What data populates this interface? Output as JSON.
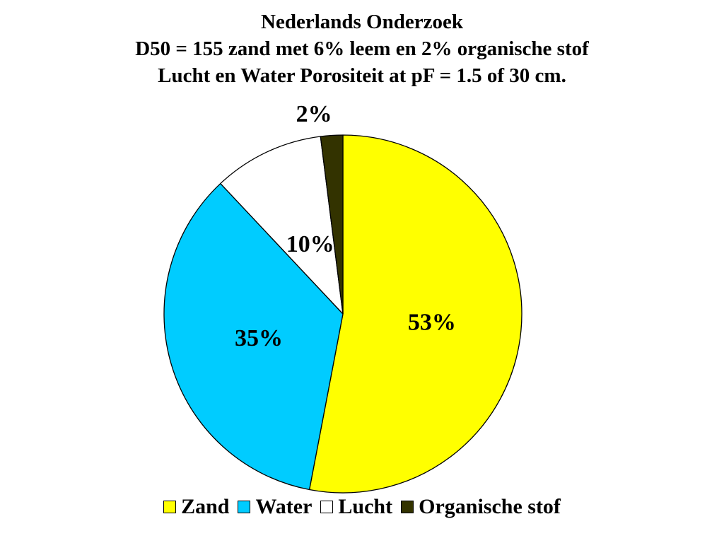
{
  "chart_data": {
    "type": "pie",
    "title_lines": [
      "Nederlands Onderzoek",
      "D50 = 155 zand met 6% leem en 2% organische stof",
      "Lucht en Water Porositeit at pF = 1.5 of 30 cm."
    ],
    "slices": [
      {
        "name": "Zand",
        "value": 53,
        "label": "53%",
        "color": "#ffff00"
      },
      {
        "name": "Water",
        "value": 35,
        "label": "35%",
        "color": "#00ccff"
      },
      {
        "name": "Lucht",
        "value": 10,
        "label": "10%",
        "color": "#ffffff"
      },
      {
        "name": "Organische stof",
        "value": 2,
        "label": "2%",
        "color": "#333300"
      }
    ],
    "start": "12 o'clock",
    "direction": "clockwise",
    "legend_position": "bottom"
  }
}
